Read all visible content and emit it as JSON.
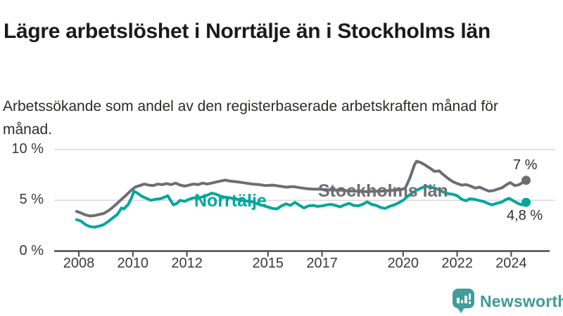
{
  "title": "Lägre arbetslöshet i Norrtälje än i Stockholms län",
  "subtitle": "Arbetssökande som andel av den registerbaserade arbetskraften månad för månad.",
  "branding": {
    "logo_text": "Newsworthy",
    "logo_icon": "bar-chart-speech-bubble-icon",
    "color": "#3f9e99"
  },
  "chart_data": {
    "type": "line",
    "title": "Lägre arbetslöshet i Norrtälje än i Stockholms län",
    "subtitle": "Arbetssökande som andel av den registerbaserade arbetskraften månad för månad.",
    "xlabel": "",
    "ylabel": "",
    "grid": "horizontal",
    "legend_position": "inline-on-lines",
    "ylim": [
      0,
      10
    ],
    "x_range": [
      2007.92,
      2024.55
    ],
    "y_ticks": [
      {
        "value": 0,
        "label": "0 %"
      },
      {
        "value": 5,
        "label": "5 %"
      },
      {
        "value": 10,
        "label": "10 %"
      }
    ],
    "x_ticks": [
      {
        "value": 2008,
        "label": "2008"
      },
      {
        "value": 2010,
        "label": "2010"
      },
      {
        "value": 2012,
        "label": "2012"
      },
      {
        "value": 2015,
        "label": "2015"
      },
      {
        "value": 2017,
        "label": "2017"
      },
      {
        "value": 2020,
        "label": "2020"
      },
      {
        "value": 2022,
        "label": "2022"
      },
      {
        "value": 2024,
        "label": "2024"
      }
    ],
    "series": [
      {
        "name": "Stockholms län",
        "color": "#6e6d72",
        "end_label": "7 %",
        "end_value": 7.0,
        "points": [
          [
            2007.92,
            3.9
          ],
          [
            2008.08,
            3.75
          ],
          [
            2008.25,
            3.55
          ],
          [
            2008.42,
            3.45
          ],
          [
            2008.58,
            3.5
          ],
          [
            2008.75,
            3.6
          ],
          [
            2008.92,
            3.7
          ],
          [
            2009.08,
            3.95
          ],
          [
            2009.25,
            4.3
          ],
          [
            2009.42,
            4.7
          ],
          [
            2009.58,
            5.1
          ],
          [
            2009.75,
            5.5
          ],
          [
            2009.92,
            5.95
          ],
          [
            2010.08,
            6.3
          ],
          [
            2010.25,
            6.45
          ],
          [
            2010.42,
            6.6
          ],
          [
            2010.58,
            6.5
          ],
          [
            2010.75,
            6.45
          ],
          [
            2010.92,
            6.6
          ],
          [
            2011.08,
            6.55
          ],
          [
            2011.25,
            6.65
          ],
          [
            2011.42,
            6.55
          ],
          [
            2011.58,
            6.7
          ],
          [
            2011.75,
            6.5
          ],
          [
            2011.92,
            6.4
          ],
          [
            2012.08,
            6.5
          ],
          [
            2012.25,
            6.6
          ],
          [
            2012.42,
            6.55
          ],
          [
            2012.58,
            6.7
          ],
          [
            2012.75,
            6.6
          ],
          [
            2012.92,
            6.7
          ],
          [
            2013.08,
            6.8
          ],
          [
            2013.25,
            6.9
          ],
          [
            2013.42,
            7.0
          ],
          [
            2013.58,
            6.9
          ],
          [
            2013.75,
            6.85
          ],
          [
            2013.92,
            6.8
          ],
          [
            2014.17,
            6.7
          ],
          [
            2014.42,
            6.6
          ],
          [
            2014.67,
            6.55
          ],
          [
            2014.92,
            6.45
          ],
          [
            2015.17,
            6.5
          ],
          [
            2015.42,
            6.4
          ],
          [
            2015.67,
            6.3
          ],
          [
            2015.92,
            6.35
          ],
          [
            2016.17,
            6.25
          ],
          [
            2016.42,
            6.15
          ],
          [
            2016.67,
            6.1
          ],
          [
            2016.92,
            6.1
          ],
          [
            2017.17,
            6.05
          ],
          [
            2017.42,
            6.0
          ],
          [
            2017.67,
            6.0
          ],
          [
            2017.92,
            5.95
          ],
          [
            2018.17,
            5.9
          ],
          [
            2018.42,
            5.9
          ],
          [
            2018.67,
            5.85
          ],
          [
            2018.92,
            5.9
          ],
          [
            2019.17,
            5.9
          ],
          [
            2019.42,
            5.95
          ],
          [
            2019.67,
            6.0
          ],
          [
            2019.92,
            6.05
          ],
          [
            2020.08,
            6.2
          ],
          [
            2020.25,
            7.2
          ],
          [
            2020.42,
            8.5
          ],
          [
            2020.5,
            8.85
          ],
          [
            2020.67,
            8.7
          ],
          [
            2020.83,
            8.45
          ],
          [
            2021.0,
            8.15
          ],
          [
            2021.17,
            7.85
          ],
          [
            2021.33,
            7.9
          ],
          [
            2021.5,
            7.5
          ],
          [
            2021.67,
            7.15
          ],
          [
            2021.83,
            6.85
          ],
          [
            2022.0,
            6.65
          ],
          [
            2022.17,
            6.5
          ],
          [
            2022.33,
            6.55
          ],
          [
            2022.5,
            6.4
          ],
          [
            2022.67,
            6.2
          ],
          [
            2022.83,
            6.3
          ],
          [
            2023.0,
            6.1
          ],
          [
            2023.17,
            5.9
          ],
          [
            2023.33,
            5.95
          ],
          [
            2023.5,
            6.1
          ],
          [
            2023.67,
            6.25
          ],
          [
            2023.83,
            6.55
          ],
          [
            2023.97,
            6.75
          ],
          [
            2024.13,
            6.45
          ],
          [
            2024.3,
            6.55
          ],
          [
            2024.55,
            6.97
          ]
        ]
      },
      {
        "name": "Norrtälje",
        "color": "#00a79b",
        "end_label": "4,8 %",
        "end_value": 4.8,
        "points": [
          [
            2007.92,
            3.1
          ],
          [
            2008.08,
            2.95
          ],
          [
            2008.25,
            2.6
          ],
          [
            2008.42,
            2.4
          ],
          [
            2008.58,
            2.35
          ],
          [
            2008.75,
            2.45
          ],
          [
            2008.92,
            2.6
          ],
          [
            2009.08,
            2.9
          ],
          [
            2009.25,
            3.25
          ],
          [
            2009.42,
            3.6
          ],
          [
            2009.5,
            3.9
          ],
          [
            2009.58,
            4.25
          ],
          [
            2009.67,
            4.15
          ],
          [
            2009.83,
            4.6
          ],
          [
            2009.96,
            5.3
          ],
          [
            2010.04,
            5.9
          ],
          [
            2010.17,
            5.7
          ],
          [
            2010.33,
            5.4
          ],
          [
            2010.5,
            5.2
          ],
          [
            2010.67,
            5.0
          ],
          [
            2010.83,
            5.1
          ],
          [
            2011.0,
            5.15
          ],
          [
            2011.17,
            5.3
          ],
          [
            2011.29,
            5.45
          ],
          [
            2011.42,
            4.9
          ],
          [
            2011.5,
            4.55
          ],
          [
            2011.63,
            4.7
          ],
          [
            2011.75,
            5.0
          ],
          [
            2011.92,
            4.9
          ],
          [
            2012.08,
            5.1
          ],
          [
            2012.25,
            5.25
          ],
          [
            2012.42,
            5.2
          ],
          [
            2012.58,
            5.35
          ],
          [
            2012.75,
            5.5
          ],
          [
            2012.92,
            5.7
          ],
          [
            2013.08,
            5.6
          ],
          [
            2013.25,
            5.4
          ],
          [
            2013.42,
            5.3
          ],
          [
            2013.58,
            5.25
          ],
          [
            2013.75,
            5.15
          ],
          [
            2013.92,
            5.05
          ],
          [
            2014.17,
            4.95
          ],
          [
            2014.42,
            4.85
          ],
          [
            2014.67,
            4.6
          ],
          [
            2014.92,
            4.4
          ],
          [
            2015.17,
            4.2
          ],
          [
            2015.33,
            4.15
          ],
          [
            2015.5,
            4.45
          ],
          [
            2015.67,
            4.65
          ],
          [
            2015.83,
            4.5
          ],
          [
            2016.0,
            4.8
          ],
          [
            2016.17,
            4.5
          ],
          [
            2016.33,
            4.25
          ],
          [
            2016.5,
            4.45
          ],
          [
            2016.67,
            4.5
          ],
          [
            2016.83,
            4.4
          ],
          [
            2017.0,
            4.45
          ],
          [
            2017.17,
            4.55
          ],
          [
            2017.33,
            4.6
          ],
          [
            2017.5,
            4.5
          ],
          [
            2017.67,
            4.35
          ],
          [
            2017.83,
            4.55
          ],
          [
            2018.0,
            4.7
          ],
          [
            2018.17,
            4.5
          ],
          [
            2018.33,
            4.45
          ],
          [
            2018.5,
            4.6
          ],
          [
            2018.67,
            4.85
          ],
          [
            2018.83,
            4.6
          ],
          [
            2019.0,
            4.5
          ],
          [
            2019.17,
            4.3
          ],
          [
            2019.33,
            4.2
          ],
          [
            2019.5,
            4.4
          ],
          [
            2019.67,
            4.55
          ],
          [
            2019.83,
            4.75
          ],
          [
            2020.0,
            5.0
          ],
          [
            2020.17,
            5.4
          ],
          [
            2020.33,
            5.7
          ],
          [
            2020.5,
            6.0
          ],
          [
            2020.67,
            6.2
          ],
          [
            2020.83,
            6.4
          ],
          [
            2021.0,
            6.3
          ],
          [
            2021.17,
            6.2
          ],
          [
            2021.33,
            6.05
          ],
          [
            2021.5,
            5.8
          ],
          [
            2021.67,
            5.65
          ],
          [
            2021.83,
            5.6
          ],
          [
            2022.0,
            5.45
          ],
          [
            2022.17,
            5.1
          ],
          [
            2022.33,
            4.95
          ],
          [
            2022.46,
            5.15
          ],
          [
            2022.63,
            5.1
          ],
          [
            2022.79,
            5.0
          ],
          [
            2022.96,
            4.9
          ],
          [
            2023.13,
            4.7
          ],
          [
            2023.29,
            4.55
          ],
          [
            2023.46,
            4.7
          ],
          [
            2023.63,
            4.8
          ],
          [
            2023.79,
            5.05
          ],
          [
            2023.92,
            5.2
          ],
          [
            2024.08,
            4.95
          ],
          [
            2024.25,
            4.7
          ],
          [
            2024.4,
            4.55
          ],
          [
            2024.55,
            4.8
          ]
        ]
      }
    ]
  }
}
